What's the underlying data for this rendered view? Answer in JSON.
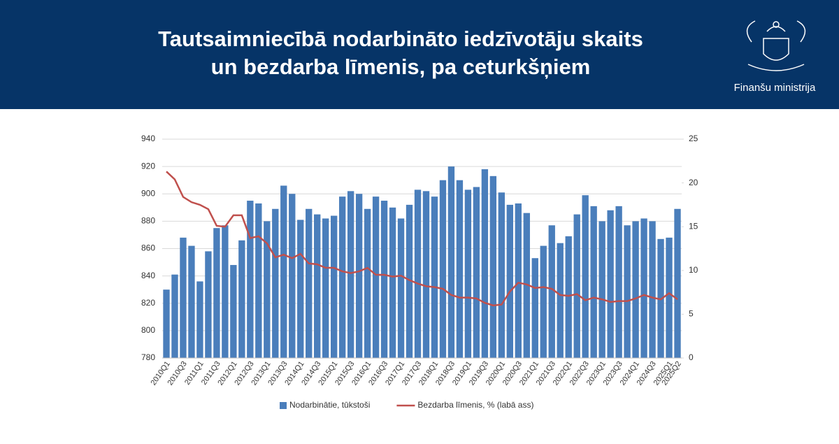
{
  "header": {
    "title": [
      "Tautsaimniecībā nodarbināto iedzīvotāju skaits",
      "un bezdarba līmenis, pa ceturkšņiem"
    ],
    "org": "Finanšu ministrija"
  },
  "chart_data": {
    "type": "bar_line",
    "categories": [
      "2010Q1",
      null,
      "2010Q3",
      null,
      "2011Q1",
      null,
      "2011Q3",
      null,
      "2012Q1",
      null,
      "2012Q3",
      null,
      "2013Q1",
      null,
      "2013Q3",
      null,
      "2014Q1",
      null,
      "2014Q3",
      null,
      "2015Q1",
      null,
      "2015Q3",
      null,
      "2016Q1",
      null,
      "2016Q3",
      null,
      "2017Q1",
      null,
      "2017Q3",
      null,
      "2018Q1",
      null,
      "2018Q3",
      null,
      "2019Q1",
      null,
      "2019Q3",
      null,
      "2020Q1",
      null,
      "2020Q3",
      null,
      "2021Q1",
      null,
      "2021Q3",
      null,
      "2022Q1",
      null,
      "2022Q3",
      null,
      "2023Q1",
      null,
      "2023Q3",
      null,
      "2024Q1",
      null,
      "2024Q3",
      null,
      "2025Q1",
      "2025Q2"
    ],
    "series": [
      {
        "name": "Nodarbinātie, tūkstoši",
        "type": "bar",
        "color": "#4a7ebb",
        "values": [
          830,
          841,
          868,
          862,
          836,
          858,
          875,
          877,
          848,
          866,
          895,
          893,
          880,
          889,
          906,
          900,
          881,
          889,
          885,
          882,
          884,
          898,
          902,
          900,
          889,
          898,
          895,
          890,
          882,
          892,
          903,
          902,
          898,
          910,
          920,
          910,
          903,
          905,
          918,
          913,
          901,
          892,
          893,
          886,
          853,
          862,
          877,
          864,
          869,
          885,
          899,
          891,
          880,
          888,
          891,
          877,
          880,
          882,
          880,
          867,
          868,
          889
        ]
      },
      {
        "name": "Bezdarba līmenis, % (labā ass)",
        "type": "line",
        "axis": "y2",
        "color": "#c0504d",
        "values": [
          21.3,
          20.4,
          18.4,
          17.8,
          17.5,
          17.0,
          15.1,
          15.0,
          16.3,
          16.3,
          13.7,
          13.9,
          13.1,
          11.5,
          11.8,
          11.4,
          11.9,
          10.8,
          10.7,
          10.3,
          10.3,
          9.9,
          9.7,
          9.9,
          10.3,
          9.5,
          9.5,
          9.3,
          9.4,
          8.9,
          8.5,
          8.2,
          8.1,
          7.9,
          7.2,
          6.9,
          6.9,
          6.8,
          6.3,
          6.0,
          6.1,
          7.6,
          8.6,
          8.4,
          8.0,
          8.1,
          7.9,
          7.2,
          7.1,
          7.3,
          6.6,
          6.9,
          6.7,
          6.4,
          6.5,
          6.5,
          6.8,
          7.2,
          6.9,
          6.7,
          7.4,
          6.7
        ]
      }
    ],
    "ylim": [
      780,
      940
    ],
    "yticks": [
      780,
      800,
      820,
      840,
      860,
      880,
      900,
      920,
      940
    ],
    "y2lim": [
      0,
      25
    ],
    "y2ticks": [
      0,
      5,
      10,
      15,
      20,
      25
    ],
    "grid": true,
    "legend": "bottom"
  }
}
